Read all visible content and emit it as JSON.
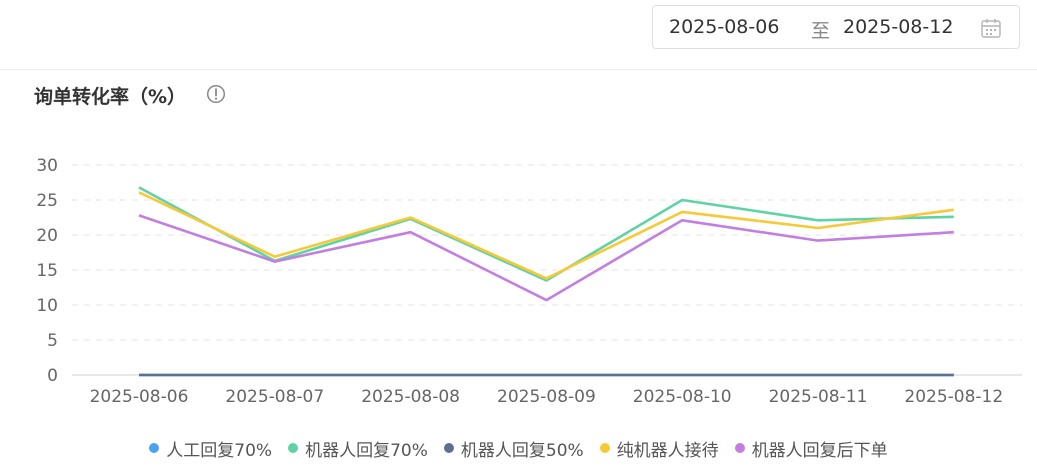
{
  "date_range": {
    "start": "2025-08-06",
    "separator": "至",
    "end": "2025-08-12"
  },
  "header": {
    "title": "询单转化率（%）"
  },
  "chart_data": {
    "type": "line",
    "title": "询单转化率（%）",
    "categories": [
      "2025-08-06",
      "2025-08-07",
      "2025-08-08",
      "2025-08-09",
      "2025-08-10",
      "2025-08-11",
      "2025-08-12"
    ],
    "y_ticks": [
      "0",
      "5",
      "10",
      "15",
      "20",
      "25",
      "30"
    ],
    "ylim": [
      0,
      30
    ],
    "grid": true,
    "legend_position": "bottom",
    "series": [
      {
        "name": "人工回复70%",
        "color": "#4aa3f0",
        "values": [
          0,
          0,
          0,
          0,
          0,
          0,
          0
        ]
      },
      {
        "name": "机器人回复70%",
        "color": "#5fd3a5",
        "values": [
          26.8,
          16.3,
          22.3,
          13.5,
          25.0,
          22.1,
          22.6
        ]
      },
      {
        "name": "机器人回复50%",
        "color": "#5e7092",
        "values": [
          0,
          0,
          0,
          0,
          0,
          0,
          0
        ]
      },
      {
        "name": "纯机器人接待",
        "color": "#f7c937",
        "values": [
          26.1,
          16.9,
          22.5,
          13.8,
          23.3,
          21.0,
          23.6
        ]
      },
      {
        "name": "机器人回复后下单",
        "color": "#c27fe0",
        "values": [
          22.8,
          16.2,
          20.4,
          10.7,
          22.1,
          19.2,
          20.4
        ]
      }
    ]
  }
}
